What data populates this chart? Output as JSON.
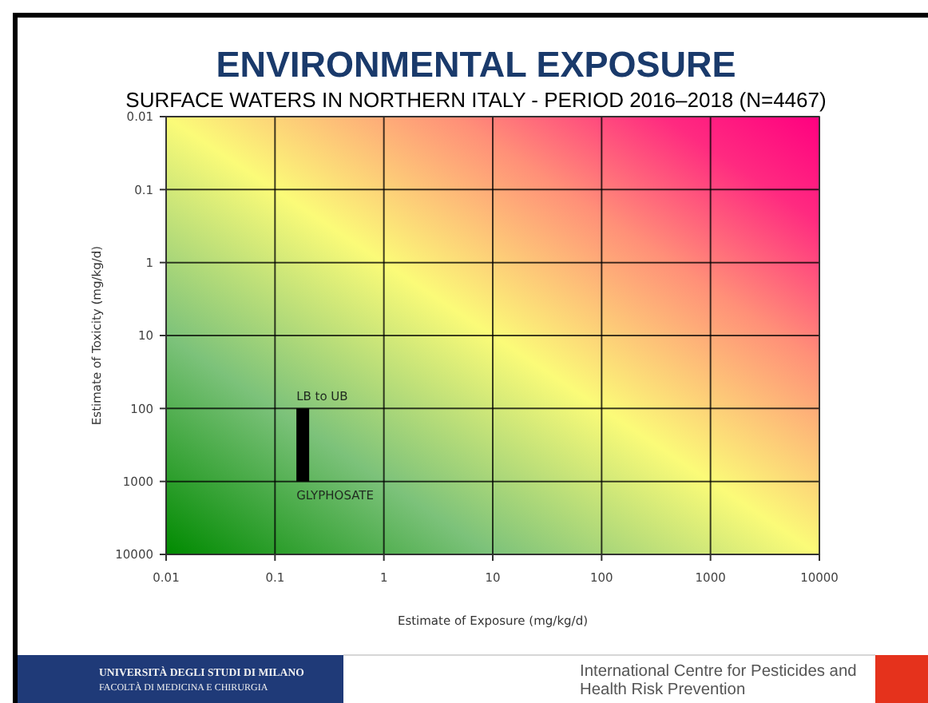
{
  "chart_data": {
    "type": "line",
    "title": "ENVIRONMENTAL EXPOSURE",
    "subtitle": "SURFACE WATERS IN NORTHERN ITALY - PERIOD 2016–2018 (N=4467)",
    "xlabel": "Estimate of Exposure (mg/kg/d)",
    "ylabel": "Estimate of Toxicity (mg/kg/d)",
    "series": [
      {
        "color": "#000000",
        "x": [
          0.18,
          0.18
        ],
        "values": [
          100,
          1000
        ]
      }
    ],
    "xlim": [
      0.01,
      10000
    ],
    "ylim": [
      10000,
      0.01
    ],
    "xticks": [
      0.01,
      0.1,
      1,
      10,
      100,
      1000,
      10000
    ],
    "yticks": [
      0.01,
      0.1,
      1,
      10,
      100,
      1000,
      10000
    ],
    "log": "xy",
    "grid": true,
    "annotations": [
      {
        "text": "LB to UB",
        "x": 0.18,
        "y": 100
      },
      {
        "text": "GLYPHOSATE",
        "x": 0.18,
        "y": 1000
      },
      "UNIVERSITÀ DEGLI STUDI DI MILANO",
      "FACOLTÀ DI MEDICINA E CHIRURGIA",
      "International Centre for Pesticides and\nHealth Risk Prevention"
    ]
  }
}
